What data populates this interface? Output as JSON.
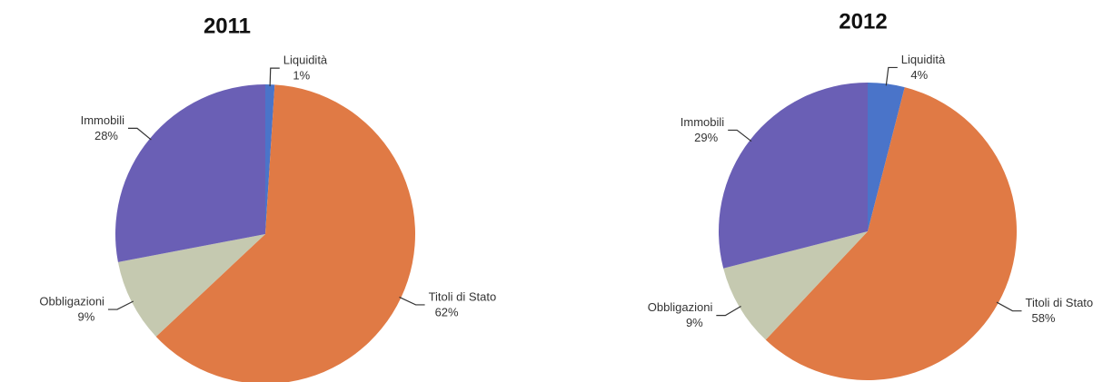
{
  "chart_data": [
    {
      "type": "pie",
      "title": "2011",
      "categories": [
        "Liquidità",
        "Titoli di Stato",
        "Obbligazioni",
        "Immobili"
      ],
      "values": [
        1,
        62,
        9,
        28
      ],
      "value_labels": [
        "1%",
        "62%",
        "9%",
        "28%"
      ],
      "colors": [
        "#4a74c9",
        "#e07a45",
        "#c5c9b0",
        "#6a5fb5"
      ]
    },
    {
      "type": "pie",
      "title": "2012",
      "categories": [
        "Liquidità",
        "Titoli di Stato",
        "Obbligazioni",
        "Immobili"
      ],
      "values": [
        4,
        58,
        9,
        29
      ],
      "value_labels": [
        "4%",
        "58%",
        "9%",
        "29%"
      ],
      "colors": [
        "#4a74c9",
        "#e07a45",
        "#c5c9b0",
        "#6a5fb5"
      ]
    }
  ]
}
